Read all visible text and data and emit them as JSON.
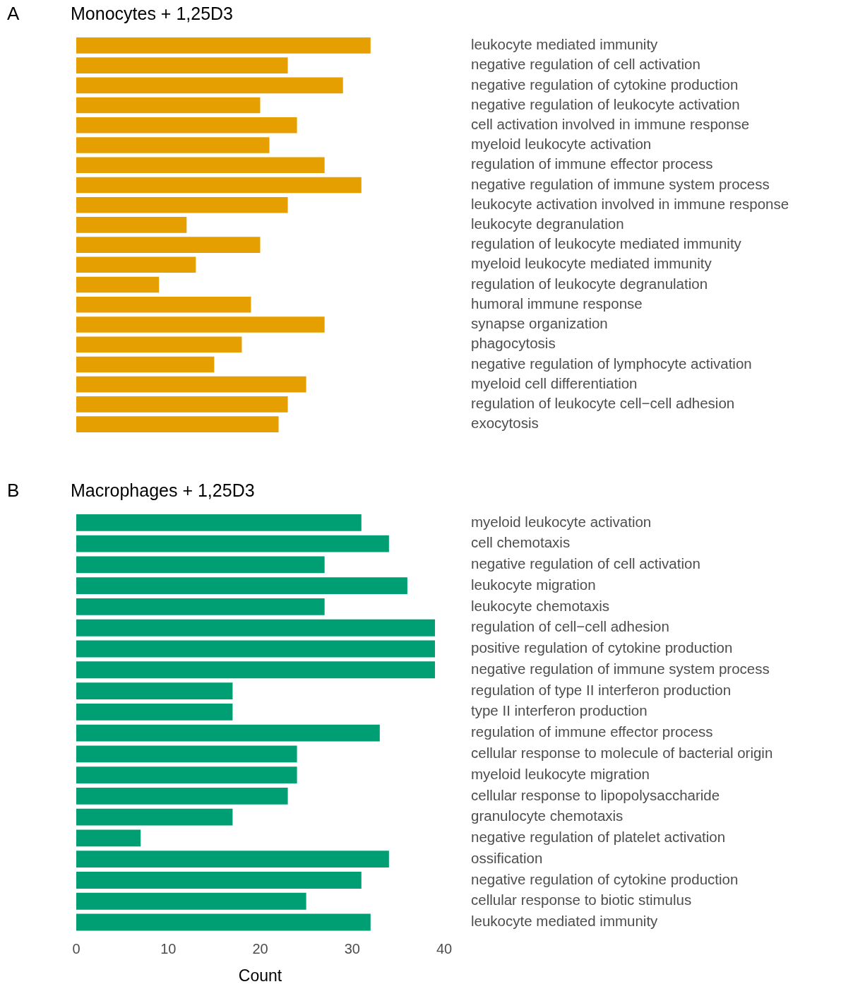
{
  "chart_data": [
    {
      "type": "bar",
      "orientation": "horizontal",
      "title": "Monocytes + 1,25D3",
      "annotations": [
        "A"
      ],
      "tick_labels": "y",
      "grid": false,
      "legend": false,
      "xlim": [
        0,
        40
      ],
      "xticks": [
        0,
        10,
        20,
        30,
        40
      ],
      "color": "#e69f00",
      "categories": [
        "leukocyte mediated immunity",
        "negative regulation of cell activation",
        "negative regulation of cytokine production",
        "negative regulation of leukocyte activation",
        "cell activation involved in immune response",
        "myeloid leukocyte activation",
        "regulation of immune effector process",
        "negative regulation of immune system process",
        "leukocyte activation involved in immune response",
        "leukocyte degranulation",
        "regulation of leukocyte mediated immunity",
        "myeloid leukocyte mediated immunity",
        "regulation of leukocyte degranulation",
        "humoral immune response",
        "synapse organization",
        "phagocytosis",
        "negative regulation of lymphocyte activation",
        "myeloid cell differentiation",
        "regulation of leukocyte cell−cell adhesion",
        "exocytosis"
      ],
      "values": [
        32,
        23,
        29,
        20,
        24,
        21,
        27,
        31,
        23,
        12,
        20,
        13,
        9,
        19,
        27,
        18,
        15,
        25,
        23,
        22
      ]
    },
    {
      "type": "bar",
      "orientation": "horizontal",
      "title": "Macrophages + 1,25D3",
      "annotations": [
        "B"
      ],
      "xlabel": "Count",
      "grid": false,
      "legend": false,
      "xlim": [
        0,
        40
      ],
      "xticks": [
        0,
        10,
        20,
        30,
        40
      ],
      "color": "#009e73",
      "categories": [
        "myeloid leukocyte activation",
        "cell chemotaxis",
        "negative regulation of cell activation",
        "leukocyte migration",
        "leukocyte chemotaxis",
        "regulation of cell−cell adhesion",
        "positive regulation of cytokine production",
        "negative regulation of immune system process",
        "regulation of type II interferon production",
        "type II interferon production",
        "regulation of immune effector process",
        "cellular response to molecule of bacterial origin",
        "myeloid leukocyte migration",
        "cellular response to lipopolysaccharide",
        "granulocyte chemotaxis",
        "negative regulation of platelet activation",
        "ossification",
        "negative regulation of cytokine production",
        "cellular response to biotic stimulus",
        "leukocyte mediated immunity"
      ],
      "values": [
        31,
        34,
        27,
        36,
        27,
        39,
        39,
        39,
        17,
        17,
        33,
        24,
        24,
        23,
        17,
        7,
        34,
        31,
        25,
        32
      ]
    }
  ]
}
